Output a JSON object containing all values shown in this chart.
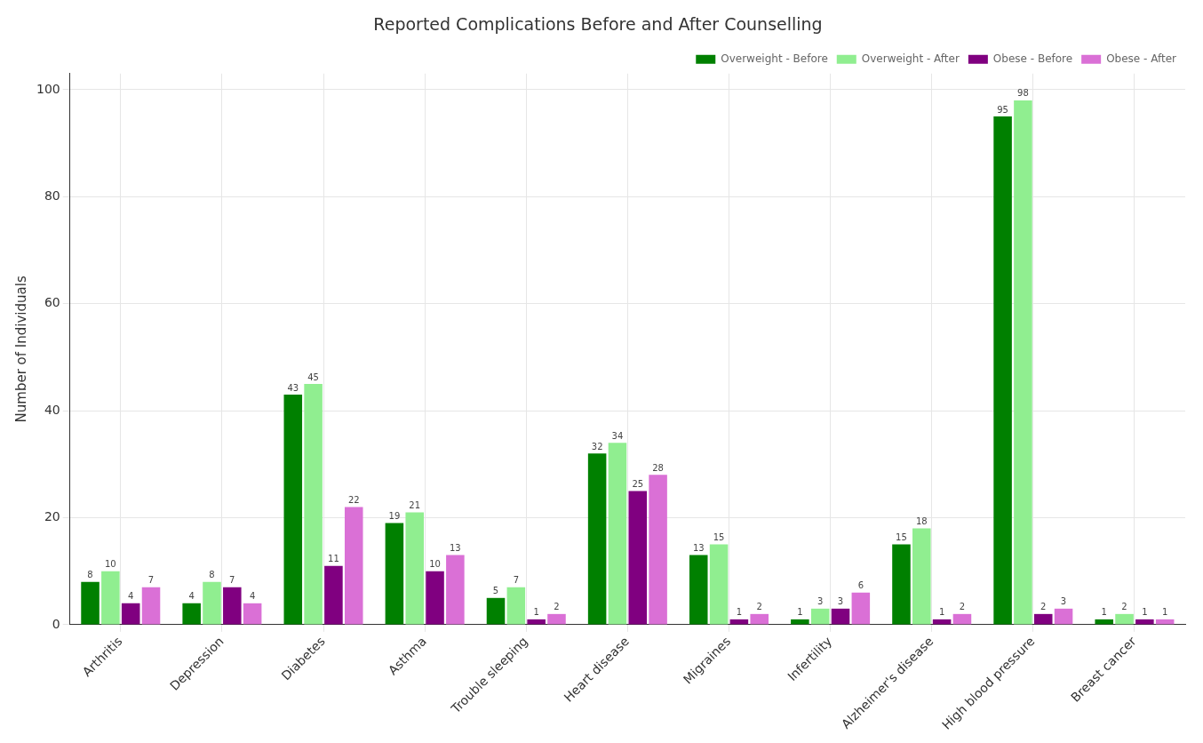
{
  "chart_data": {
    "type": "bar",
    "title": "Reported Complications Before and After Counselling",
    "ylabel": "Number of Individuals",
    "categories": [
      "Arthritis",
      "Depression",
      "Diabetes",
      "Asthma",
      "Trouble sleeping",
      "Heart disease",
      "Migraines",
      "Infertility",
      "Alzheimer's disease",
      "High blood pressure",
      "Breast cancer"
    ],
    "series": [
      {
        "name": "Overweight - Before",
        "color": "#008000",
        "values": [
          8,
          4,
          43,
          19,
          5,
          32,
          13,
          1,
          15,
          95,
          1
        ]
      },
      {
        "name": "Overweight - After",
        "color": "#90ee90",
        "values": [
          10,
          8,
          45,
          21,
          7,
          34,
          15,
          3,
          18,
          98,
          2
        ]
      },
      {
        "name": "Obese - Before",
        "color": "#800080",
        "values": [
          4,
          7,
          11,
          10,
          1,
          25,
          1,
          3,
          1,
          2,
          1
        ]
      },
      {
        "name": "Obese - After",
        "color": "#da70d6",
        "values": [
          7,
          4,
          22,
          13,
          2,
          28,
          2,
          6,
          2,
          3,
          1
        ]
      }
    ],
    "ylim": [
      0,
      103
    ],
    "yticks": [
      0,
      20,
      40,
      60,
      80,
      100
    ],
    "grid": true,
    "legend": "top right",
    "data_labels": true
  }
}
